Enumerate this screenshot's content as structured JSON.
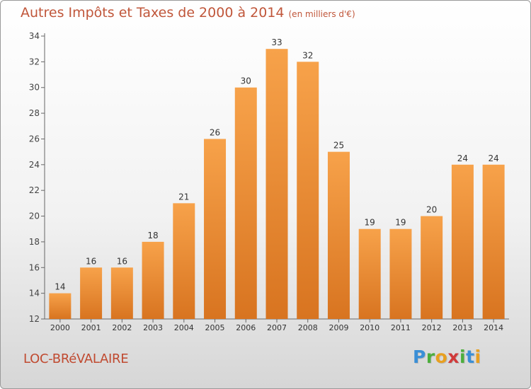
{
  "title": "Autres Impôts et Taxes de 2000 à 2014",
  "unit": "(en milliers d'€)",
  "commune": "LOC-BRéVALAIRE",
  "logo": {
    "letters": [
      {
        "char": "P",
        "color": "#3a8fd6"
      },
      {
        "char": "r",
        "color": "#4cae3c"
      },
      {
        "char": "o",
        "color": "#e8a020"
      },
      {
        "char": "x",
        "color": "#d03a3a"
      },
      {
        "char": "i",
        "color": "#4cae3c"
      },
      {
        "char": "t",
        "color": "#3a8fd6"
      },
      {
        "char": "i",
        "color": "#e8a020"
      }
    ]
  },
  "colors": {
    "bar_light": "#f7a24a",
    "bar_dark": "#d87420",
    "title": "#c0563a",
    "axis": "#666666"
  },
  "chart_data": {
    "type": "bar",
    "categories": [
      "2000",
      "2001",
      "2002",
      "2003",
      "2004",
      "2005",
      "2006",
      "2007",
      "2008",
      "2009",
      "2010",
      "2011",
      "2012",
      "2013",
      "2014"
    ],
    "values": [
      14,
      16,
      16,
      18,
      21,
      26,
      30,
      33,
      32,
      25,
      19,
      19,
      20,
      24,
      24
    ],
    "value_labels": [
      "14",
      "16",
      "16",
      "18",
      "21",
      "26",
      "30",
      "33",
      "32",
      "25",
      "19",
      "19",
      "20",
      "24",
      "24"
    ],
    "ylim": [
      12,
      34
    ],
    "yticks": [
      "12",
      "14",
      "16",
      "18",
      "20",
      "22",
      "24",
      "26",
      "28",
      "30",
      "32",
      "34"
    ],
    "grid": false
  }
}
